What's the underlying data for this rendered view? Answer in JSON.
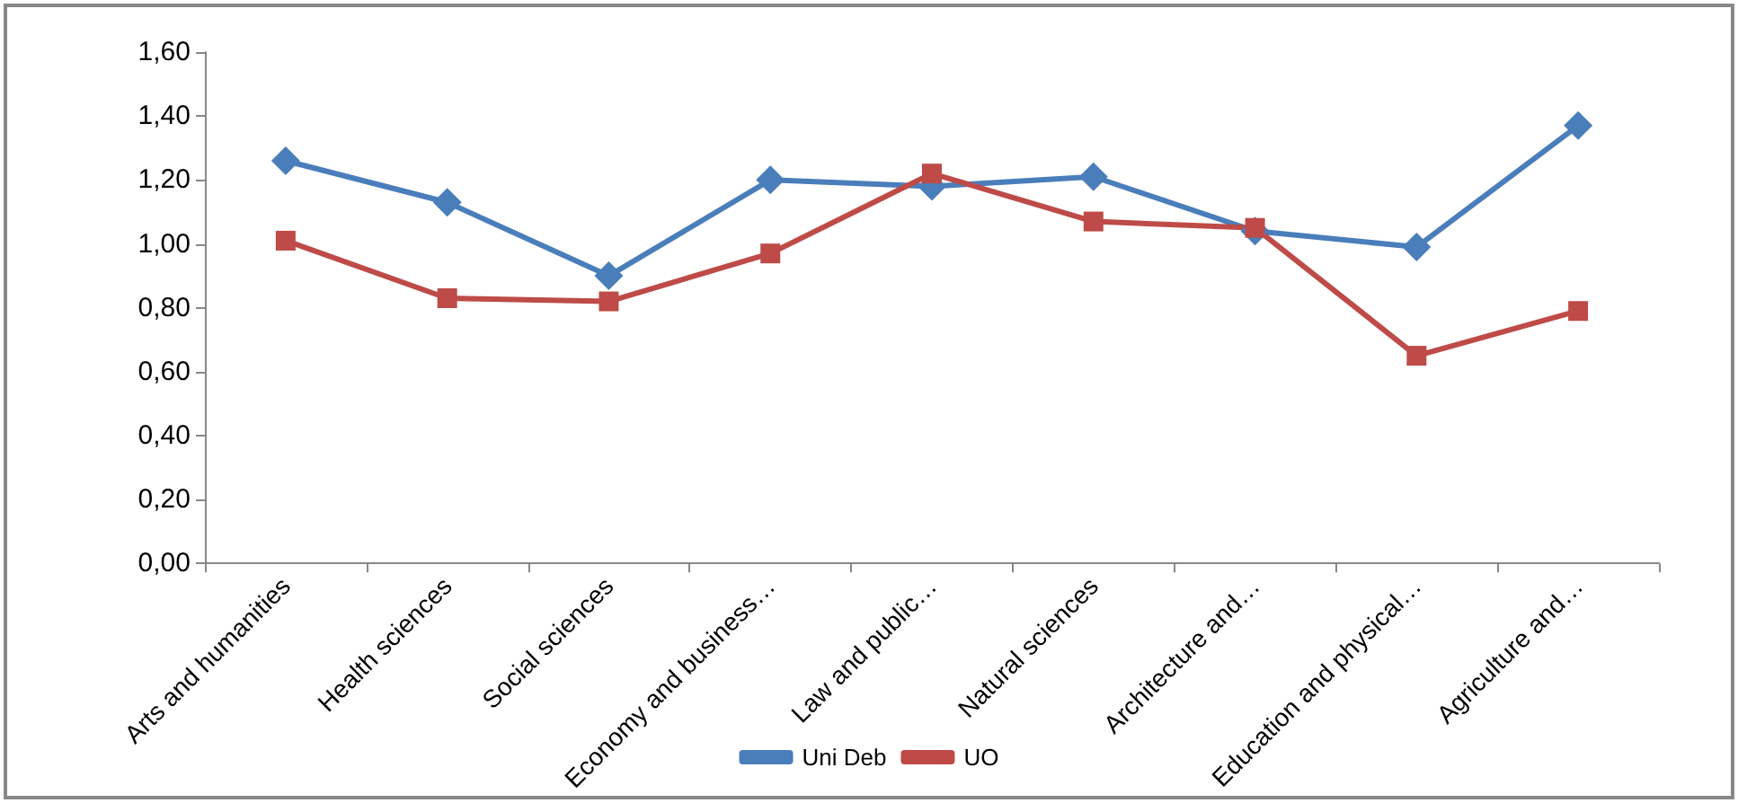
{
  "chart_data": {
    "type": "line",
    "categories": [
      "Arts and humanities",
      "Health sciences",
      "Social sciences",
      "Economy and business…",
      "Law and public…",
      "Natural sciences",
      "Architecture and…",
      "Education and physical…",
      "Agriculture and…"
    ],
    "series": [
      {
        "name": "Uni Deb",
        "color": "#4a7ebb",
        "marker": "diamond",
        "values": [
          1.26,
          1.13,
          0.9,
          1.2,
          1.18,
          1.21,
          1.04,
          0.99,
          1.37
        ]
      },
      {
        "name": "UO",
        "color": "#be4b48",
        "marker": "square",
        "values": [
          1.01,
          0.83,
          0.82,
          0.97,
          1.22,
          1.07,
          1.05,
          0.65,
          0.79
        ]
      }
    ],
    "ylim": [
      0,
      1.6
    ],
    "yticks": [
      {
        "value": 0,
        "label": "0,00"
      },
      {
        "value": 0.2,
        "label": "0,20"
      },
      {
        "value": 0.4,
        "label": "0,40"
      },
      {
        "value": 0.6,
        "label": "0,60"
      },
      {
        "value": 0.8,
        "label": "0,80"
      },
      {
        "value": 1,
        "label": "1,00"
      },
      {
        "value": 1.2,
        "label": "1,20"
      },
      {
        "value": 1.4,
        "label": "1,40"
      },
      {
        "value": 1.6,
        "label": "1,60"
      }
    ],
    "grid": false,
    "legend": "bottom"
  }
}
